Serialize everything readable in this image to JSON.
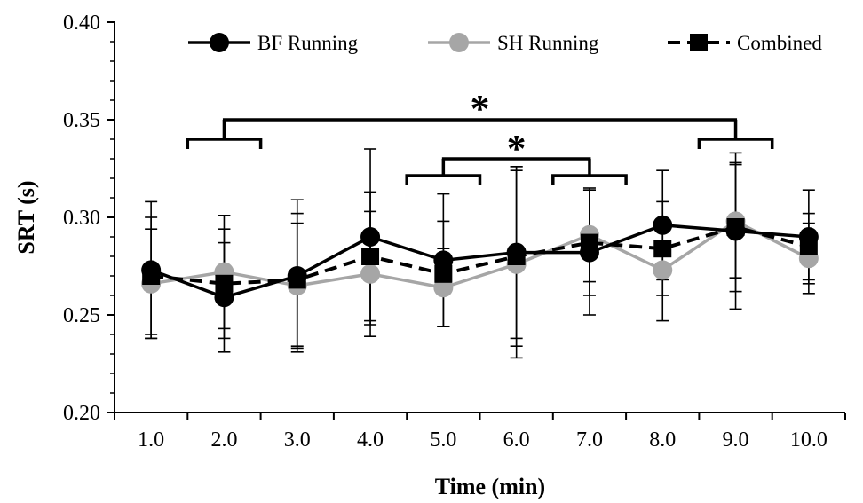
{
  "chart_data": {
    "type": "line",
    "xlabel": "Time (min)",
    "ylabel": "SRT (s)",
    "ylim": [
      0.2,
      0.4
    ],
    "y_ticks": [
      "0.20",
      "0.25",
      "0.30",
      "0.35",
      "0.40"
    ],
    "categories": [
      "1.0",
      "2.0",
      "3.0",
      "4.0",
      "5.0",
      "6.0",
      "7.0",
      "8.0",
      "9.0",
      "10.0"
    ],
    "legend_position": "top",
    "series": [
      {
        "name": "BF Running",
        "color": "#000000",
        "marker": "circle",
        "line": "solid",
        "values": [
          0.273,
          0.259,
          0.27,
          0.29,
          0.278,
          0.282,
          0.282,
          0.296,
          0.293,
          0.29
        ],
        "error": [
          0.035,
          0.028,
          0.039,
          0.045,
          0.034,
          0.044,
          0.032,
          0.028,
          0.04,
          0.024
        ]
      },
      {
        "name": "SH Running",
        "color": "#a6a6a6",
        "marker": "circle",
        "line": "solid",
        "values": [
          0.266,
          0.272,
          0.265,
          0.271,
          0.264,
          0.276,
          0.291,
          0.273,
          0.298,
          0.279
        ],
        "error": [
          0.028,
          0.029,
          0.032,
          0.032,
          0.02,
          0.048,
          0.024,
          0.026,
          0.029,
          0.018
        ]
      },
      {
        "name": "Combined",
        "color": "#000000",
        "marker": "square",
        "line": "dashed",
        "values": [
          0.27,
          0.266,
          0.268,
          0.28,
          0.271,
          0.28,
          0.287,
          0.284,
          0.295,
          0.285
        ],
        "error": [
          0.03,
          0.028,
          0.034,
          0.033,
          0.027,
          0.046,
          0.027,
          0.024,
          0.033,
          0.017
        ]
      }
    ],
    "annotations": [
      {
        "text": "*",
        "groups": [
          [
            1.5,
            2.5
          ],
          [
            8.5,
            9.5
          ]
        ]
      },
      {
        "text": "*",
        "groups": [
          [
            4.5,
            5.5
          ],
          [
            6.5,
            7.5
          ]
        ]
      }
    ]
  }
}
